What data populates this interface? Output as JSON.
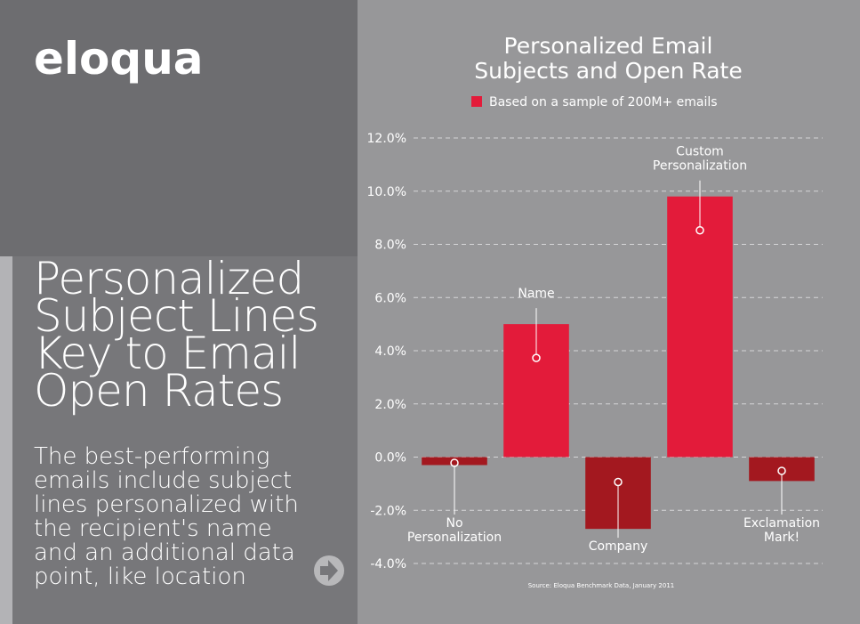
{
  "brand": "eloqua",
  "headline": "Personalized\nSubject Lines\nKey to Email\nOpen Rates",
  "body": "The best-performing\nemails include subject\nlines personalized with\nthe recipient's name\nand an additional data\npoint, like location",
  "chart_data": {
    "type": "bar",
    "title": "Personalized Email\nSubjects and Open Rate",
    "categories": [
      "No\nPersonalization",
      "Name",
      "Company",
      "Custom\nPersonalization",
      "Exclamation\nMark!"
    ],
    "series": [
      {
        "name": "Based on a sample of 200M+ emails",
        "color": "#e31b3a",
        "values": [
          -0.3,
          5.0,
          -2.7,
          9.8,
          -0.9
        ]
      }
    ],
    "negative_color": "#a3181f",
    "ylim": [
      -4,
      12
    ],
    "yticks": [
      {
        "value": -4,
        "label": "-4.0%"
      },
      {
        "value": -2,
        "label": "-2.0%"
      },
      {
        "value": 0,
        "label": "0.0%"
      },
      {
        "value": 2,
        "label": "2.0%"
      },
      {
        "value": 4,
        "label": "4.0%"
      },
      {
        "value": 6,
        "label": "6.0%"
      },
      {
        "value": 8,
        "label": "8.0%"
      },
      {
        "value": 10,
        "label": "10.0%"
      },
      {
        "value": 12,
        "label": "12.0%"
      }
    ],
    "grid": true,
    "source": "Source: Eloqua Benchmark Data, January 2011"
  }
}
